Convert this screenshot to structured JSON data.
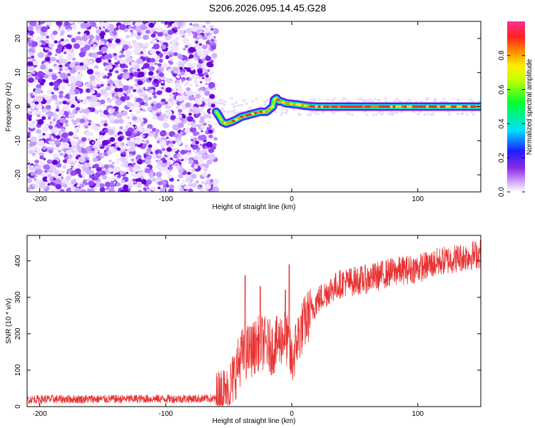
{
  "title": "S206.2026.095.14.45.G28",
  "chart_data": [
    {
      "type": "heatmap",
      "xlabel": "Height of straight line (km)",
      "ylabel": "Frequency (Hz)",
      "xlim": [
        -210,
        150
      ],
      "ylim": [
        -25,
        25
      ],
      "xticks": [
        -200,
        -100,
        0,
        100
      ],
      "yticks": [
        -20,
        -10,
        0,
        10,
        20
      ],
      "noise_region_x": [
        -210,
        -60
      ],
      "signal_track": {
        "x": [
          -60,
          -58,
          -55,
          -52,
          -48,
          -45,
          -40,
          -35,
          -30,
          -25,
          -20,
          -15,
          -14,
          -12,
          -10,
          -8,
          -5,
          0,
          5,
          10,
          15,
          20,
          150
        ],
        "freq": [
          -1.5,
          -2.5,
          -4.5,
          -5,
          -4.5,
          -4,
          -3,
          -2.5,
          -2,
          -1.5,
          -1.5,
          0,
          2,
          2.5,
          1.5,
          1.5,
          1,
          0.8,
          0.6,
          0.3,
          0.1,
          0,
          0
        ]
      },
      "colorbar": {
        "label": "Normalized spectral amplitude",
        "ticks": [
          "0.0",
          "0.2",
          "0.4",
          "0.6",
          "0.8"
        ],
        "range": [
          0,
          1
        ]
      }
    },
    {
      "type": "line",
      "xlabel": "Height of straight line (km)",
      "ylabel": "SNR (10 * v/v)",
      "xlim": [
        -210,
        150
      ],
      "ylim": [
        0,
        470
      ],
      "xticks": [
        -200,
        -100,
        0,
        100
      ],
      "yticks": [
        0,
        100,
        200,
        300,
        400
      ],
      "color": "#e83232",
      "trend": {
        "x": [
          -210,
          -60,
          -50,
          -45,
          -40,
          -35,
          -30,
          -25,
          -20,
          -15,
          -10,
          -5,
          0,
          5,
          10,
          15,
          20,
          30,
          40,
          60,
          80,
          100,
          120,
          150
        ],
        "snr": [
          20,
          22,
          45,
          90,
          140,
          150,
          160,
          180,
          170,
          160,
          180,
          200,
          120,
          190,
          230,
          260,
          290,
          320,
          340,
          350,
          370,
          380,
          400,
          420
        ]
      },
      "spikes": [
        {
          "x": -37,
          "snr": 360
        },
        {
          "x": -25,
          "snr": 330
        },
        {
          "x": -2,
          "snr": 390
        },
        {
          "x": -5,
          "snr": 320
        }
      ]
    }
  ]
}
